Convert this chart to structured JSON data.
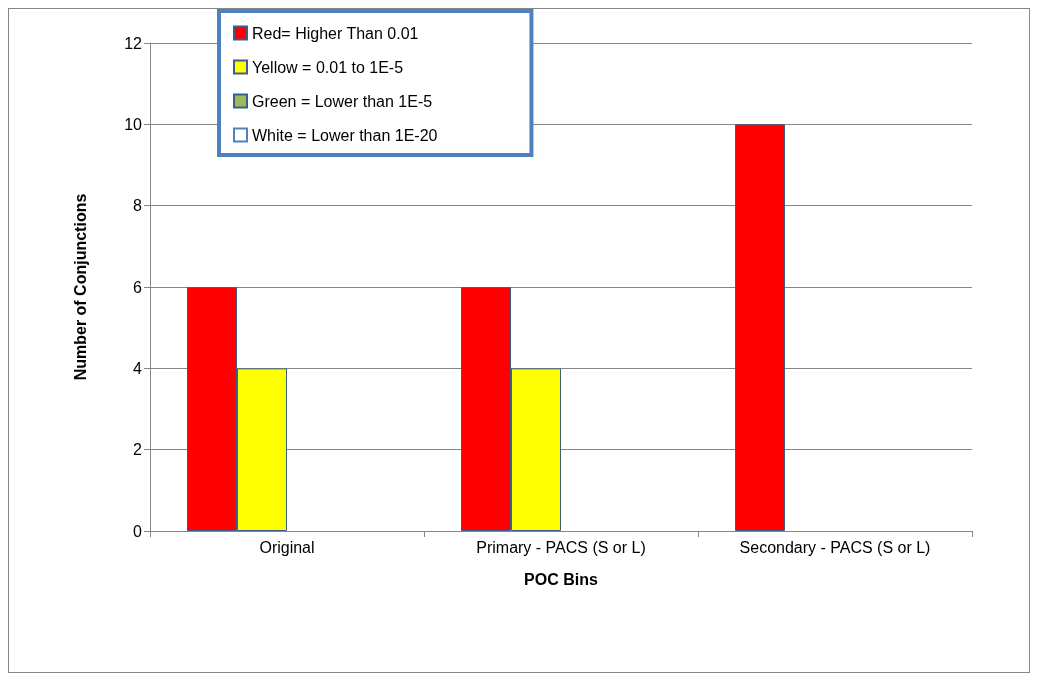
{
  "chart_data": {
    "type": "bar",
    "xlabel": "POC Bins",
    "ylabel": "Number of Conjunctions",
    "categories": [
      "Original",
      "Primary - PACS (S or L)",
      "Secondary - PACS (S or L)"
    ],
    "series": [
      {
        "name": "Red= Higher Than 0.01",
        "color": "#ff0000",
        "values": [
          6,
          6,
          10
        ]
      },
      {
        "name": "Yellow = 0.01 to 1E-5",
        "color": "#ffff00",
        "values": [
          4,
          4,
          0
        ]
      },
      {
        "name": "Green = Lower than 1E-5",
        "color": "#9bbb59",
        "values": [
          0,
          0,
          0
        ]
      },
      {
        "name": "White = Lower than 1E-20",
        "color": "#ffffff",
        "values": [
          0,
          0,
          0
        ]
      }
    ],
    "ylim": [
      0,
      12
    ],
    "yticks": [
      0,
      2,
      4,
      6,
      8,
      10,
      12
    ],
    "grid": "y",
    "legend": "top left"
  }
}
